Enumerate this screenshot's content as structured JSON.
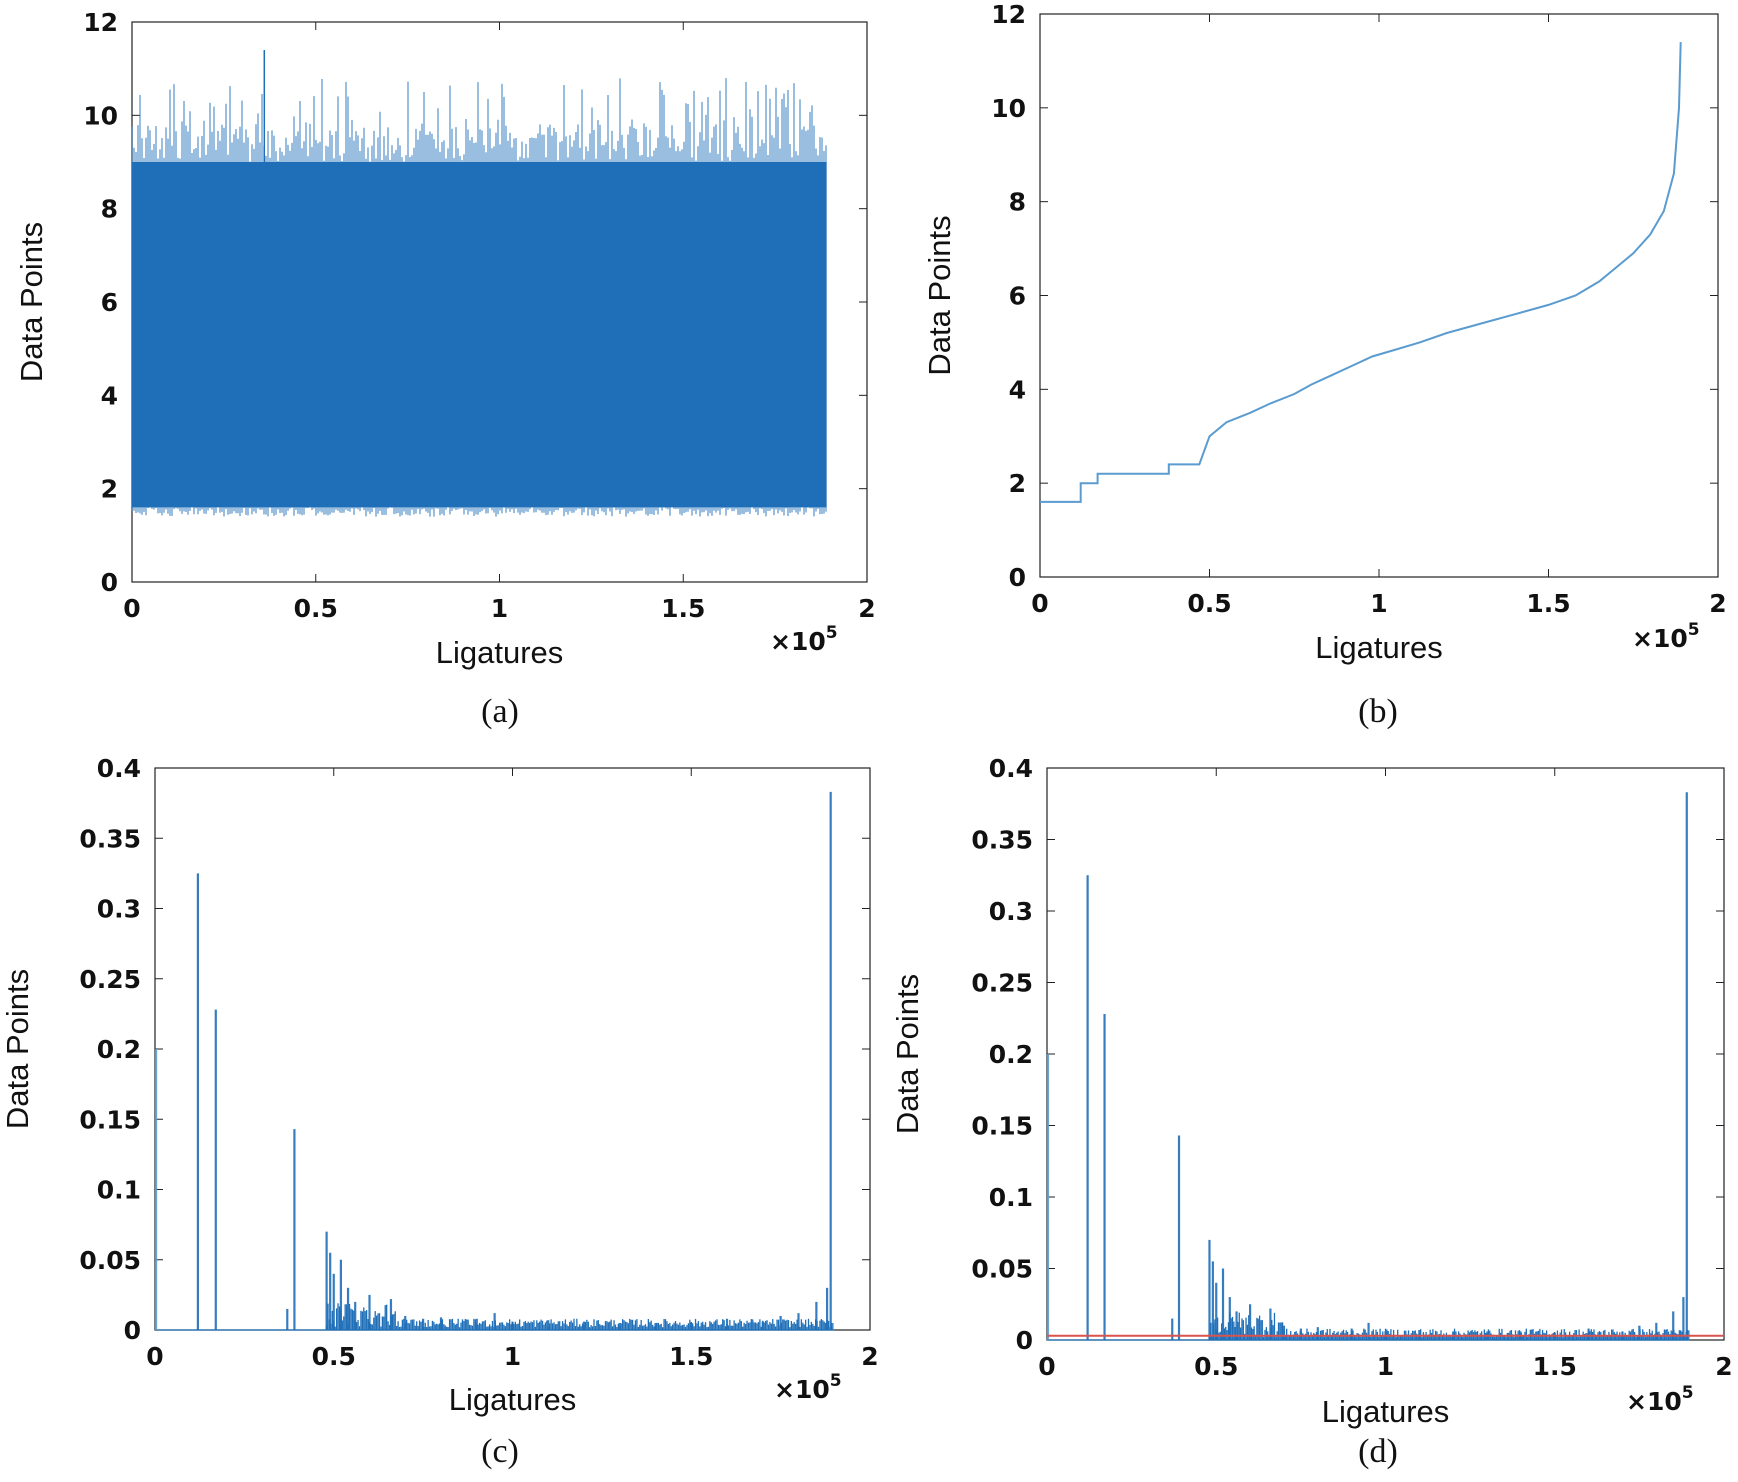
{
  "chart_data": [
    {
      "id": "a",
      "type": "bar",
      "caption": "(a)",
      "xlabel": "Ligatures",
      "ylabel": "Data Points",
      "x_multiplier": "×10",
      "x_multiplier_exp": "5",
      "xlim": [
        0,
        2
      ],
      "ylim": [
        0,
        12
      ],
      "xticks": [
        "0",
        "0.5",
        "1",
        "1.5",
        "2"
      ],
      "yticks": [
        "0",
        "2",
        "4",
        "6",
        "8",
        "10",
        "12"
      ],
      "series": [
        {
          "x_range": [
            0,
            1.89
          ],
          "value_range": [
            1.4,
            11.4
          ],
          "typical_band": [
            1.6,
            9.0
          ],
          "color": "#1f6fb8"
        }
      ]
    },
    {
      "id": "b",
      "type": "line",
      "caption": "(b)",
      "xlabel": "Ligatures",
      "ylabel": "Data Points",
      "x_multiplier": "×10",
      "x_multiplier_exp": "5",
      "xlim": [
        0,
        2
      ],
      "ylim": [
        0,
        12
      ],
      "xticks": [
        "0",
        "0.5",
        "1",
        "1.5",
        "2"
      ],
      "yticks": [
        "0",
        "2",
        "4",
        "6",
        "8",
        "10",
        "12"
      ],
      "series": [
        {
          "color": "#5a9bd0",
          "x": [
            0,
            0.12,
            0.12,
            0.17,
            0.17,
            0.38,
            0.38,
            0.47,
            0.5,
            0.55,
            0.62,
            0.68,
            0.75,
            0.8,
            0.86,
            0.92,
            0.98,
            1.05,
            1.12,
            1.2,
            1.3,
            1.4,
            1.5,
            1.58,
            1.65,
            1.7,
            1.75,
            1.8,
            1.84,
            1.87,
            1.885,
            1.89
          ],
          "y": [
            1.6,
            1.6,
            2.0,
            2.0,
            2.2,
            2.2,
            2.4,
            2.4,
            3.0,
            3.3,
            3.5,
            3.7,
            3.9,
            4.1,
            4.3,
            4.5,
            4.7,
            4.85,
            5.0,
            5.2,
            5.4,
            5.6,
            5.8,
            6.0,
            6.3,
            6.6,
            6.9,
            7.3,
            7.8,
            8.6,
            10.0,
            11.4
          ]
        }
      ]
    },
    {
      "id": "c",
      "type": "bar",
      "caption": "(c)",
      "xlabel": "Ligatures",
      "ylabel": "Data Points",
      "x_multiplier": "×10",
      "x_multiplier_exp": "5",
      "xlim": [
        0,
        2
      ],
      "ylim": [
        0,
        0.4
      ],
      "xticks": [
        "0",
        "0.5",
        "1",
        "1.5",
        "2"
      ],
      "yticks": [
        "0",
        "0.05",
        "0.1",
        "0.15",
        "0.2",
        "0.25",
        "0.3",
        "0.35",
        "0.4"
      ],
      "series": [
        {
          "color": "#1f6fb8",
          "x": [
            0.003,
            0.12,
            0.17,
            0.37,
            0.39,
            0.48,
            0.49,
            0.5,
            0.52,
            0.54,
            0.56,
            0.6,
            0.66,
            0.7,
            0.75,
            0.8,
            0.9,
            0.95,
            1.0,
            1.1,
            1.2,
            1.3,
            1.4,
            1.5,
            1.6,
            1.7,
            1.75,
            1.8,
            1.85,
            1.88,
            1.89
          ],
          "y": [
            0.2,
            0.325,
            0.228,
            0.015,
            0.143,
            0.07,
            0.055,
            0.04,
            0.05,
            0.03,
            0.02,
            0.025,
            0.022,
            0.01,
            0.008,
            0.009,
            0.008,
            0.012,
            0.006,
            0.007,
            0.006,
            0.005,
            0.005,
            0.005,
            0.008,
            0.006,
            0.01,
            0.012,
            0.02,
            0.03,
            0.383
          ]
        }
      ]
    },
    {
      "id": "d",
      "type": "bar",
      "caption": "(d)",
      "xlabel": "Ligatures",
      "ylabel": "Data Points",
      "x_multiplier": "×10",
      "x_multiplier_exp": "5",
      "xlim": [
        0,
        2
      ],
      "ylim": [
        0,
        0.4
      ],
      "xticks": [
        "0",
        "0.5",
        "1",
        "1.5",
        "2"
      ],
      "yticks": [
        "0",
        "0.05",
        "0.1",
        "0.15",
        "0.2",
        "0.25",
        "0.3",
        "0.35",
        "0.4"
      ],
      "threshold": {
        "value": 0.003,
        "color": "#d9534f"
      },
      "series": [
        {
          "color": "#1f6fb8",
          "x": [
            0.003,
            0.12,
            0.17,
            0.37,
            0.39,
            0.48,
            0.49,
            0.5,
            0.52,
            0.54,
            0.56,
            0.6,
            0.66,
            0.7,
            0.75,
            0.8,
            0.9,
            0.95,
            1.0,
            1.1,
            1.2,
            1.3,
            1.4,
            1.5,
            1.6,
            1.7,
            1.75,
            1.8,
            1.85,
            1.88,
            1.89
          ],
          "y": [
            0.2,
            0.325,
            0.228,
            0.015,
            0.143,
            0.07,
            0.055,
            0.04,
            0.05,
            0.03,
            0.02,
            0.025,
            0.022,
            0.01,
            0.008,
            0.009,
            0.008,
            0.012,
            0.006,
            0.007,
            0.006,
            0.005,
            0.005,
            0.005,
            0.008,
            0.006,
            0.01,
            0.012,
            0.02,
            0.03,
            0.383
          ]
        }
      ]
    }
  ]
}
